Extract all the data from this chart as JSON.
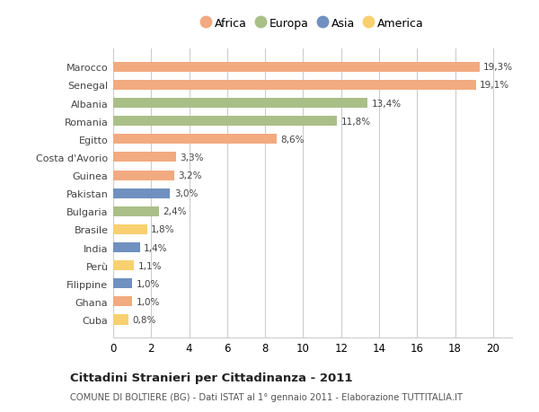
{
  "countries": [
    "Marocco",
    "Senegal",
    "Albania",
    "Romania",
    "Egitto",
    "Costa d'Avorio",
    "Guinea",
    "Pakistan",
    "Bulgaria",
    "Brasile",
    "India",
    "Perù",
    "Filippine",
    "Ghana",
    "Cuba"
  ],
  "values": [
    19.3,
    19.1,
    13.4,
    11.8,
    8.6,
    3.3,
    3.2,
    3.0,
    2.4,
    1.8,
    1.4,
    1.1,
    1.0,
    1.0,
    0.8
  ],
  "labels": [
    "19,3%",
    "19,1%",
    "13,4%",
    "11,8%",
    "8,6%",
    "3,3%",
    "3,2%",
    "3,0%",
    "2,4%",
    "1,8%",
    "1,4%",
    "1,1%",
    "1,0%",
    "1,0%",
    "0,8%"
  ],
  "continents": [
    "Africa",
    "Africa",
    "Europa",
    "Europa",
    "Africa",
    "Africa",
    "Africa",
    "Asia",
    "Europa",
    "America",
    "Asia",
    "America",
    "Asia",
    "Africa",
    "America"
  ],
  "colors": {
    "Africa": "#F2AA80",
    "Europa": "#AABF88",
    "Asia": "#7090C0",
    "America": "#F8D070"
  },
  "legend_order": [
    "Africa",
    "Europa",
    "Asia",
    "America"
  ],
  "xlim": [
    0,
    21
  ],
  "xticks": [
    0,
    2,
    4,
    6,
    8,
    10,
    12,
    14,
    16,
    18,
    20
  ],
  "title": "Cittadini Stranieri per Cittadinanza - 2011",
  "subtitle": "COMUNE DI BOLTIERE (BG) - Dati ISTAT al 1° gennaio 2011 - Elaborazione TUTTITALIA.IT",
  "background_color": "#FFFFFF",
  "grid_color": "#CCCCCC",
  "bar_height": 0.55,
  "label_fontsize": 7.5,
  "ytick_fontsize": 8.0,
  "xtick_fontsize": 8.5
}
